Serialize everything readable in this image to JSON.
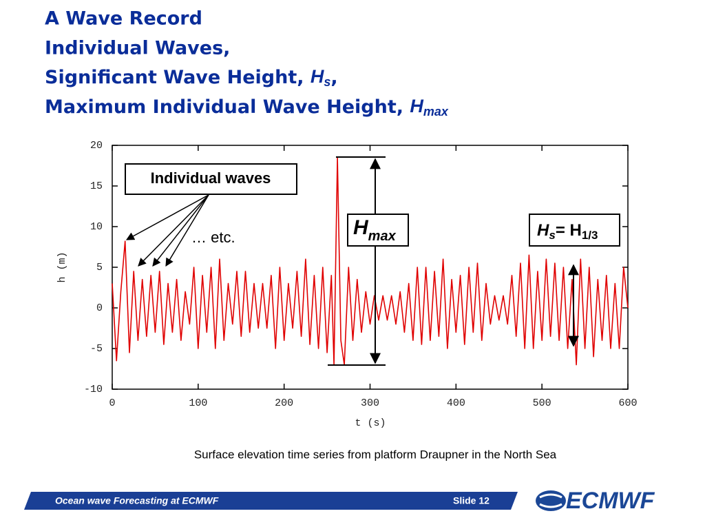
{
  "slide": {
    "title_lines": [
      {
        "text": "A Wave Record"
      },
      {
        "text": "Individual Waves,"
      },
      {
        "text": "Significant Wave Height, ",
        "sym": "H",
        "sub": "s",
        "tail": ","
      },
      {
        "text": "Maximum Individual Wave Height, ",
        "sym": "H",
        "sub": "max"
      }
    ],
    "caption": "Surface elevation time series from platform Draupner in the North Sea",
    "footer": {
      "left": "Ocean wave Forecasting at ECMWF",
      "right": "Slide 12",
      "logo": "ECMWF"
    }
  },
  "chart_data": {
    "type": "line",
    "x_label": "t (s)",
    "y_label": "h (m)",
    "annotations": {
      "individual_waves": "Individual waves",
      "etc": "… etc.",
      "hmax": {
        "sym": "H",
        "sub": "max"
      },
      "hs": {
        "sym": "H",
        "sub": "s",
        "eq": "= H",
        "sub2": "1/3"
      }
    },
    "xlim": [
      0,
      600
    ],
    "xticks": [
      0,
      100,
      200,
      300,
      400,
      500,
      600
    ],
    "ylim": [
      -10,
      20
    ],
    "yticks": [
      -10,
      -5,
      0,
      5,
      10,
      15,
      20
    ],
    "grid": false,
    "series": [
      {
        "name": "h",
        "color": "#e00000",
        "x": [
          0,
          5,
          10,
          15,
          20,
          25,
          30,
          35,
          40,
          45,
          50,
          55,
          60,
          65,
          70,
          75,
          80,
          85,
          90,
          95,
          100,
          105,
          110,
          115,
          120,
          125,
          130,
          135,
          140,
          145,
          150,
          155,
          160,
          165,
          170,
          175,
          180,
          185,
          190,
          195,
          200,
          205,
          210,
          215,
          220,
          225,
          230,
          235,
          240,
          245,
          250,
          255,
          258,
          262,
          266,
          270,
          275,
          280,
          285,
          290,
          295,
          300,
          305,
          310,
          315,
          320,
          325,
          330,
          335,
          340,
          345,
          350,
          355,
          360,
          365,
          370,
          375,
          380,
          385,
          390,
          395,
          400,
          405,
          410,
          415,
          420,
          425,
          430,
          435,
          440,
          445,
          450,
          455,
          460,
          465,
          470,
          475,
          480,
          485,
          490,
          495,
          500,
          505,
          510,
          515,
          520,
          525,
          530,
          535,
          540,
          545,
          550,
          555,
          560,
          565,
          570,
          575,
          580,
          585,
          590,
          595,
          600
        ],
        "values": [
          3,
          -6.5,
          2,
          8.2,
          -5.5,
          4.5,
          -4,
          3.5,
          -3.5,
          4,
          -3,
          4.5,
          -4.5,
          3,
          -3,
          3.5,
          -4,
          2,
          -2,
          5,
          -5,
          4,
          -3,
          5,
          -5,
          6,
          -4,
          3,
          -2,
          4.5,
          -3.5,
          4.5,
          -3,
          3,
          -2.5,
          3,
          -2.5,
          4,
          -5,
          5,
          -4,
          3,
          -2.5,
          4.5,
          -3.5,
          6,
          -4.5,
          4,
          -5,
          5,
          -5.5,
          4,
          -7,
          18.5,
          -4,
          -7,
          5,
          -4,
          3.5,
          -3,
          2,
          -2,
          1.5,
          -1.5,
          1.5,
          -1.5,
          1.5,
          -2,
          2,
          -3,
          3,
          -4,
          5,
          -4.5,
          5,
          -4,
          4.5,
          -3.5,
          6,
          -5,
          3.5,
          -3,
          4,
          -4.5,
          5,
          -3,
          5.5,
          -4,
          3,
          -2,
          1.5,
          -1.5,
          1.5,
          -2,
          4,
          -3.5,
          5.5,
          -5,
          6.5,
          -5,
          4.5,
          -4,
          6,
          -3.5,
          5.5,
          -4,
          5,
          -5,
          3.5,
          -7,
          6,
          -5,
          5,
          -6,
          3.5,
          -4,
          4,
          -5,
          3,
          -5,
          5,
          0
        ]
      }
    ]
  }
}
